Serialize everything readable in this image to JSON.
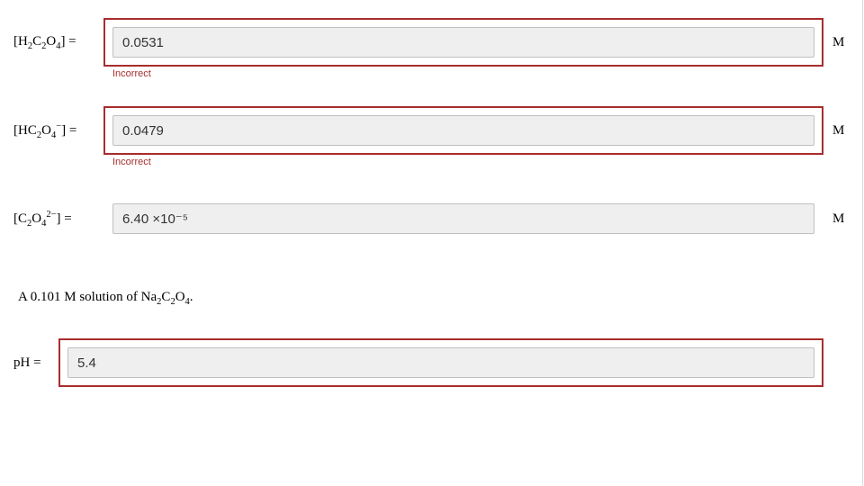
{
  "fields": [
    {
      "label_html": "[H<sub>2</sub>C<sub>2</sub>O<sub>4</sub>] =",
      "value": "0.0531",
      "unit": "M",
      "incorrect": true,
      "feedback": "Incorrect",
      "label_narrow": false
    },
    {
      "label_html": "[HC<sub>2</sub>O<sub>4</sub><sup>−</sup>] =",
      "value": "0.0479",
      "unit": "M",
      "incorrect": true,
      "feedback": "Incorrect",
      "label_narrow": false
    },
    {
      "label_html": "[C<sub>2</sub>O<sub>4</sub><sup>2−</sup>] =",
      "value": "6.40 ×10⁻⁵",
      "unit": "M",
      "incorrect": false,
      "feedback": "",
      "label_narrow": false
    }
  ],
  "question_text_html": "A 0.101 M solution of Na<sub>2</sub>C<sub>2</sub>O<sub>4</sub>.",
  "ph_field": {
    "label_html": "pH =",
    "value": "5.4",
    "unit": "",
    "incorrect": true,
    "feedback": "",
    "label_narrow": true
  },
  "colors": {
    "error_border": "#a82d2d",
    "error_text": "#a82d2d",
    "input_bg": "#efefef",
    "input_border": "#c0c0c0"
  }
}
